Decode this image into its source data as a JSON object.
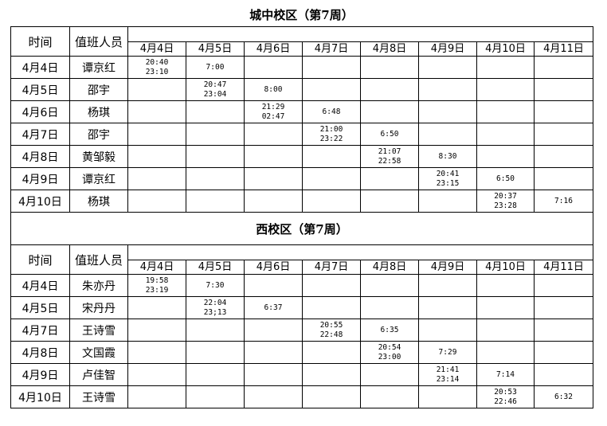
{
  "campuses": [
    {
      "title": "城中校区（第7周）",
      "header_time": "时间",
      "header_staff": "值班人员",
      "dates": [
        "4月4日",
        "4月5日",
        "4月6日",
        "4月7日",
        "4月8日",
        "4月9日",
        "4月10日",
        "4月11日"
      ],
      "rows": [
        {
          "date": "4月4日",
          "name": "谭京红",
          "cells": [
            [
              "20:40",
              "23:10"
            ],
            [
              "7:00"
            ],
            [],
            [],
            [],
            [],
            [],
            []
          ]
        },
        {
          "date": "4月5日",
          "name": "邵宇",
          "cells": [
            [],
            [
              "20:47",
              "23:04"
            ],
            [
              "8:00"
            ],
            [],
            [],
            [],
            [],
            []
          ]
        },
        {
          "date": "4月6日",
          "name": "杨琪",
          "cells": [
            [],
            [],
            [
              "21:29",
              "02:47"
            ],
            [
              "6:48"
            ],
            [],
            [],
            [],
            []
          ]
        },
        {
          "date": "4月7日",
          "name": "邵宇",
          "cells": [
            [],
            [],
            [],
            [
              "21:00",
              "23:22"
            ],
            [
              "6:50"
            ],
            [],
            [],
            []
          ]
        },
        {
          "date": "4月8日",
          "name": "黄邹毅",
          "cells": [
            [],
            [],
            [],
            [],
            [
              "21:07",
              "22:58"
            ],
            [
              "8:30"
            ],
            [],
            []
          ]
        },
        {
          "date": "4月9日",
          "name": "谭京红",
          "cells": [
            [],
            [],
            [],
            [],
            [],
            [
              "20:41",
              "23:15"
            ],
            [
              "6:50"
            ],
            []
          ]
        },
        {
          "date": "4月10日",
          "name": "杨琪",
          "cells": [
            [],
            [],
            [],
            [],
            [],
            [],
            [
              "20:37",
              "23:28"
            ],
            [
              "7:16"
            ]
          ]
        }
      ]
    },
    {
      "title": "西校区（第7周）",
      "header_time": "时间",
      "header_staff": "值班人员",
      "dates": [
        "4月4日",
        "4月5日",
        "4月6日",
        "4月7日",
        "4月8日",
        "4月9日",
        "4月10日",
        "4月11日"
      ],
      "rows": [
        {
          "date": "4月4日",
          "name": "朱亦丹",
          "cells": [
            [
              "19:58",
              "23:19"
            ],
            [
              "7:30"
            ],
            [],
            [],
            [],
            [],
            [],
            []
          ]
        },
        {
          "date": "4月5日",
          "name": "宋丹丹",
          "cells": [
            [],
            [
              "22:04",
              "23;13"
            ],
            [
              "6:37"
            ],
            [],
            [],
            [],
            [],
            []
          ]
        },
        {
          "date": "4月7日",
          "name": "王诗雪",
          "cells": [
            [],
            [],
            [],
            [
              "20:55",
              "22:48"
            ],
            [
              "6:35"
            ],
            [],
            [],
            []
          ]
        },
        {
          "date": "4月8日",
          "name": "文国霞",
          "cells": [
            [],
            [],
            [],
            [],
            [
              "20:54",
              "23:00"
            ],
            [
              "7:29"
            ],
            [],
            []
          ]
        },
        {
          "date": "4月9日",
          "name": "卢佳智",
          "cells": [
            [],
            [],
            [],
            [],
            [],
            [
              "21:41",
              "23:14"
            ],
            [
              "7:14"
            ],
            []
          ]
        },
        {
          "date": "4月10日",
          "name": "王诗雪",
          "cells": [
            [],
            [],
            [],
            [],
            [],
            [],
            [
              "20:53",
              "22:46"
            ],
            [
              "6:32"
            ]
          ]
        }
      ]
    }
  ]
}
